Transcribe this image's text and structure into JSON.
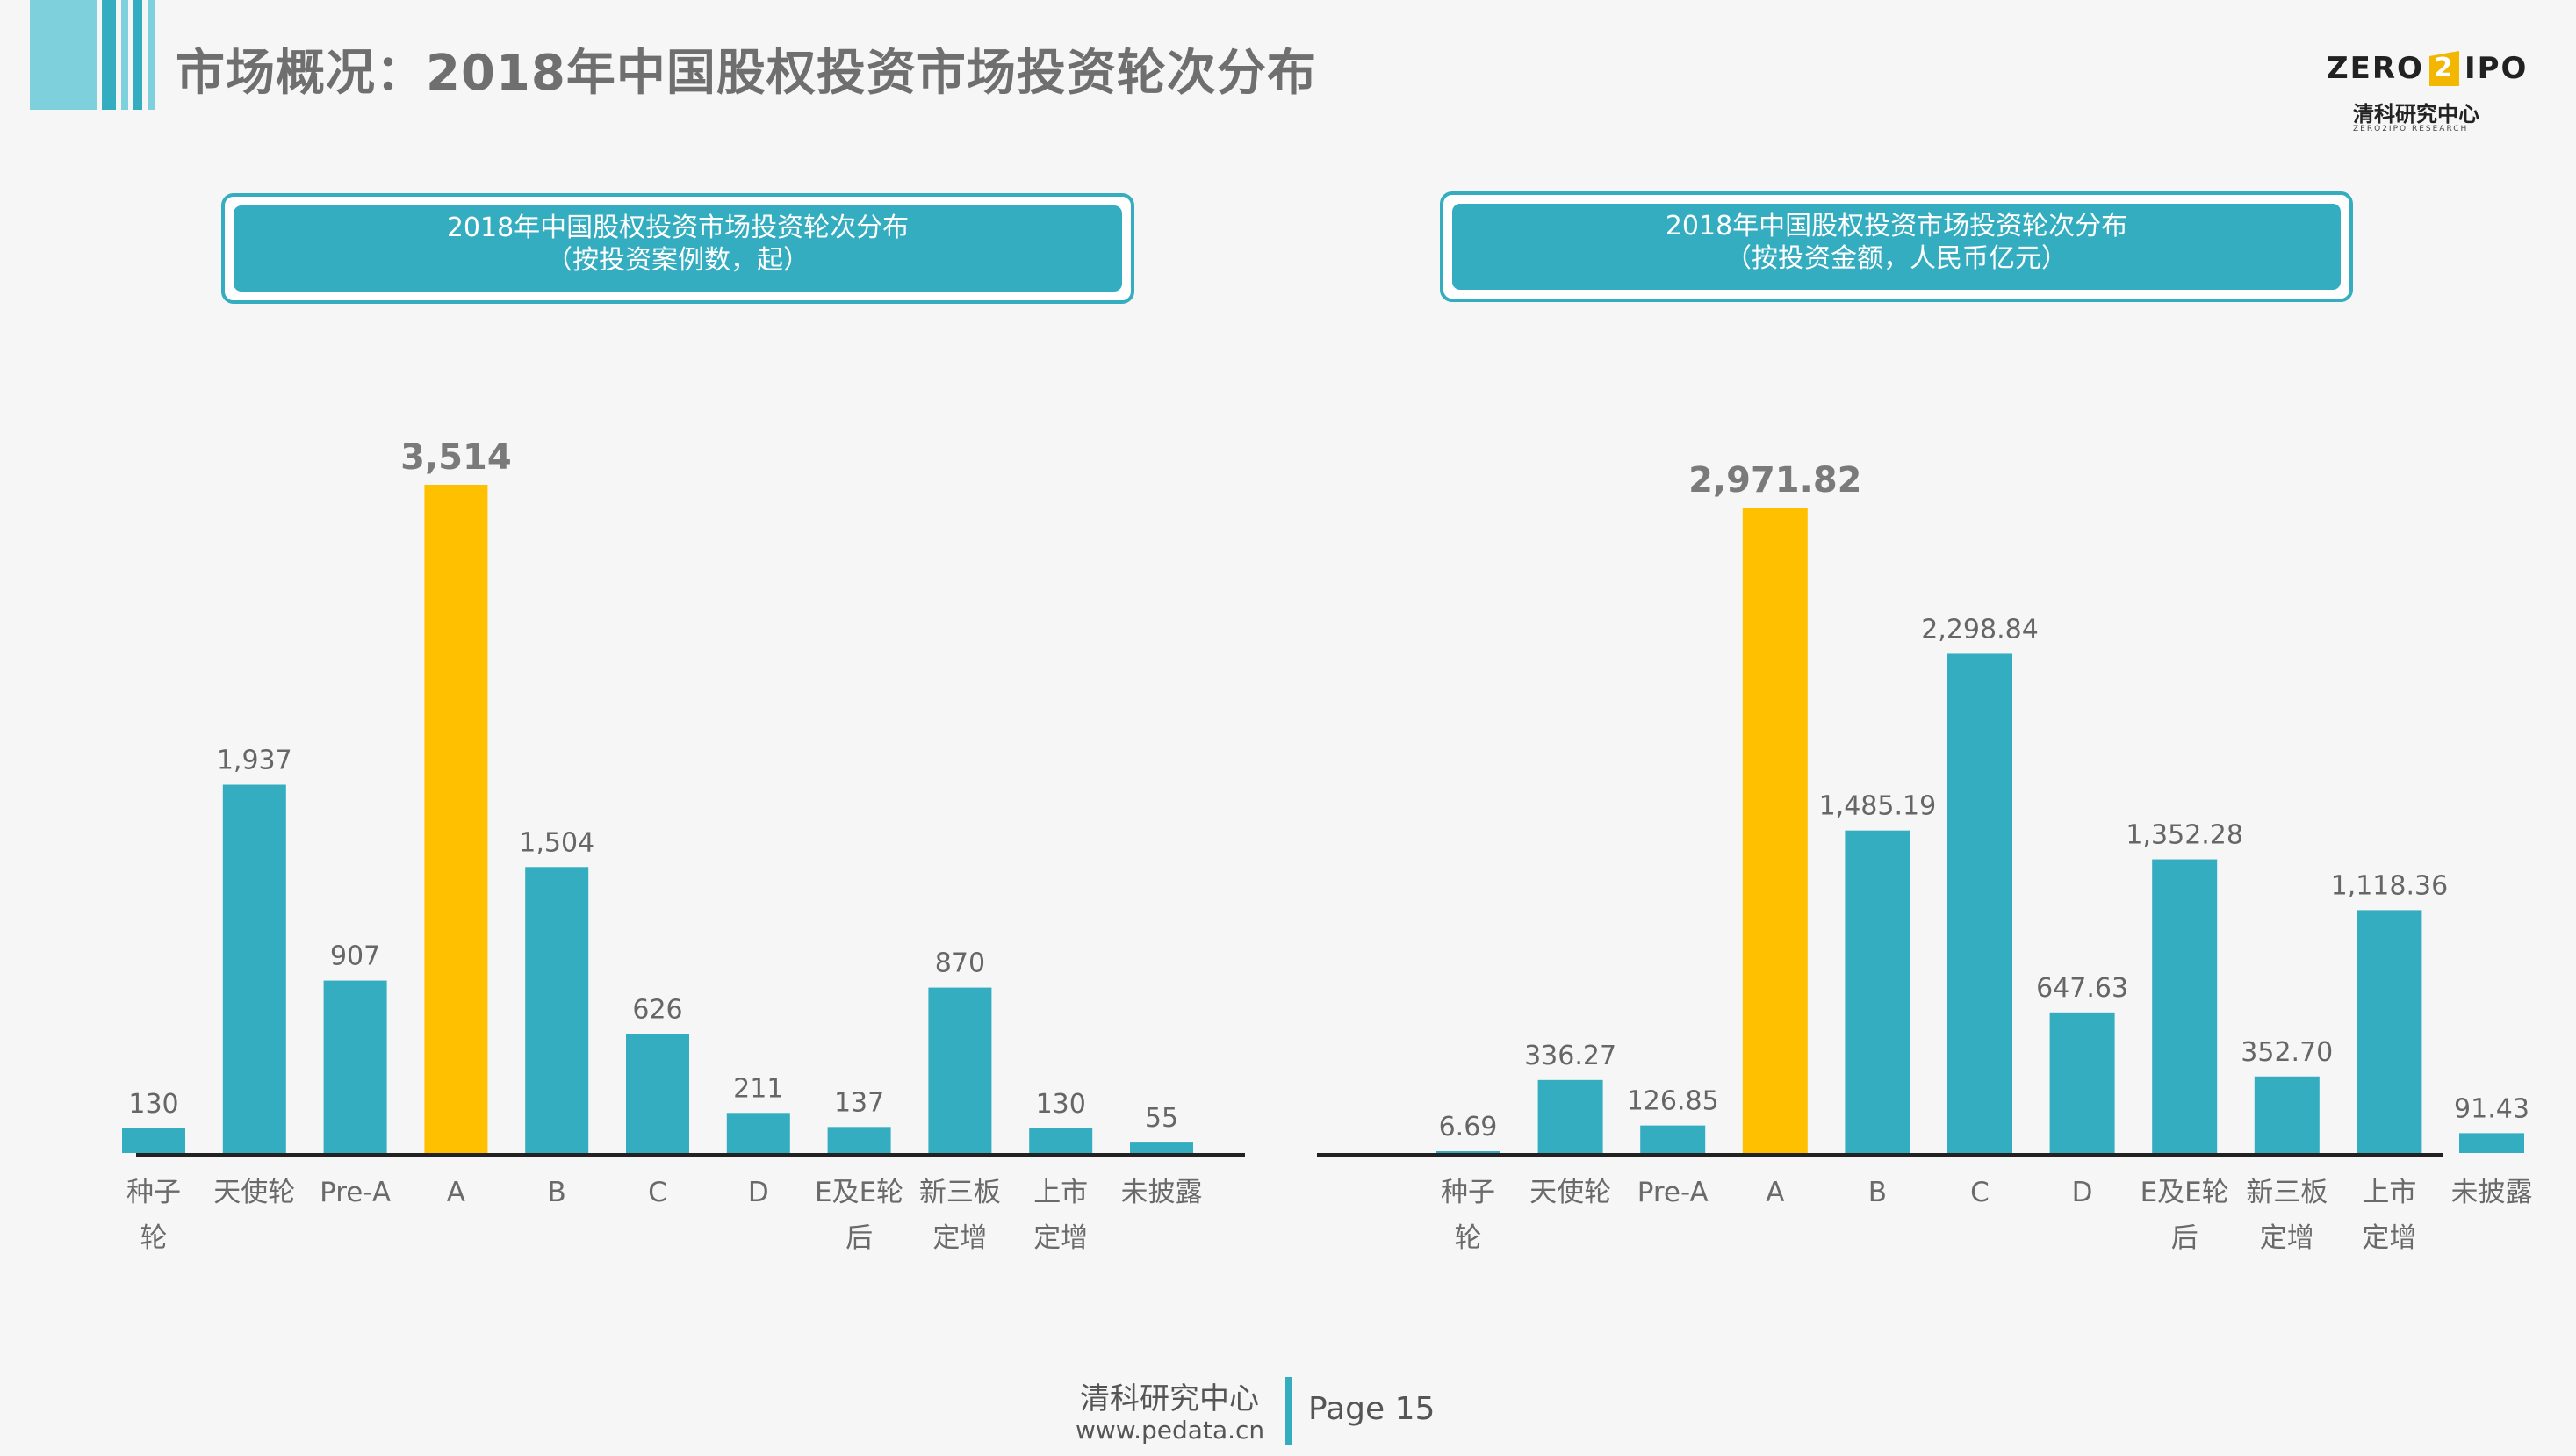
{
  "page_title": "市场概况：2018年中国股权投资市场投资轮次分布",
  "logo": {
    "left_text": "ZERO",
    "number": "2",
    "right_text": "IPO",
    "subtitle": "清科研究中心",
    "tiny": "ZERO2IPO RESEARCH"
  },
  "colors": {
    "bar": "#33adbf",
    "highlight": "#ffc000",
    "deco_light": "#7dd0dc",
    "deco_dark": "#33adbf"
  },
  "panels": [
    {
      "title_line1": "2018年中国股权投资市场投资轮次分布",
      "title_line2": "（按投资案例数，起）"
    },
    {
      "title_line1": "2018年中国股权投资市场投资轮次分布",
      "title_line2": "（按投资金额，人民币亿元）"
    }
  ],
  "chart_data": [
    {
      "type": "bar",
      "categories": [
        "种子\n轮",
        "天使轮",
        "Pre-A",
        "A",
        "B",
        "C",
        "D",
        "E及E轮\n后",
        "新三板\n定增",
        "上市\n定增",
        "未披露"
      ],
      "values": [
        130,
        1937,
        907,
        3514,
        1504,
        626,
        211,
        137,
        870,
        130,
        55
      ],
      "labels": [
        "130",
        "1,937",
        "907",
        "3,514",
        "1,504",
        "626",
        "211",
        "137",
        "870",
        "130",
        "55"
      ],
      "highlight_index": 3,
      "ylim": [
        0,
        3514
      ]
    },
    {
      "type": "bar",
      "categories": [
        "种子\n轮",
        "天使轮",
        "Pre-A",
        "A",
        "B",
        "C",
        "D",
        "E及E轮\n后",
        "新三板\n定增",
        "上市\n定增",
        "未披露"
      ],
      "values": [
        6.69,
        336.27,
        126.85,
        2971.82,
        1485.19,
        2298.84,
        647.63,
        1352.28,
        352.7,
        1118.36,
        91.43
      ],
      "labels": [
        "6.69",
        "336.27",
        "126.85",
        "2,971.82",
        "1,485.19",
        "2,298.84",
        "647.63",
        "1,352.28",
        "352.70",
        "1,118.36",
        "91.43"
      ],
      "highlight_index": 3,
      "ylim": [
        0,
        2971.82
      ]
    }
  ],
  "footer": {
    "brand": "清科研究中心",
    "url": "www.pedata.cn",
    "page": "Page 15"
  }
}
